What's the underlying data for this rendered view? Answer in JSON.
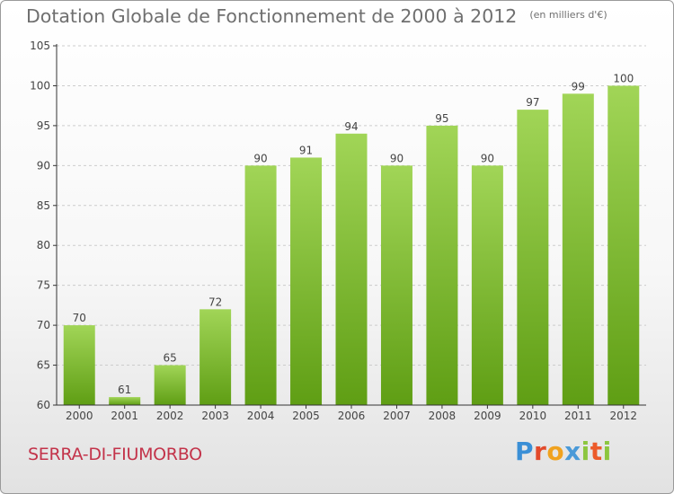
{
  "header": {
    "title": "Dotation Globale de Fonctionnement de 2000 à 2012",
    "subtitle": "(en milliers d'€)"
  },
  "footer": {
    "commune": "SERRA-DI-FIUMORBO",
    "brand_letters": [
      {
        "ch": "P",
        "color": "#3a8fd6"
      },
      {
        "ch": "r",
        "color": "#e24a2b"
      },
      {
        "ch": "o",
        "color": "#f0a21f"
      },
      {
        "ch": "x",
        "color": "#4a9ad8"
      },
      {
        "ch": "i",
        "color": "#8cc63f"
      },
      {
        "ch": "t",
        "color": "#ec5a2a"
      },
      {
        "ch": "i",
        "color": "#8cc63f"
      }
    ]
  },
  "colors": {
    "bar_light": "#a1d557",
    "bar_dark": "#5f9e14",
    "grid": "#cccccc",
    "axis": "#333333",
    "text": "#444444"
  },
  "chart_data": {
    "type": "bar",
    "title": "Dotation Globale de Fonctionnement de 2000 à 2012",
    "xlabel": "",
    "ylabel": "",
    "categories": [
      "2000",
      "2001",
      "2002",
      "2003",
      "2004",
      "2005",
      "2006",
      "2007",
      "2008",
      "2009",
      "2010",
      "2011",
      "2012"
    ],
    "values": [
      70,
      61,
      65,
      72,
      90,
      91,
      94,
      90,
      95,
      90,
      97,
      99,
      100
    ],
    "ylim": [
      60,
      105
    ],
    "yticks": [
      60,
      65,
      70,
      75,
      80,
      85,
      90,
      95,
      100,
      105
    ],
    "grid": true
  }
}
